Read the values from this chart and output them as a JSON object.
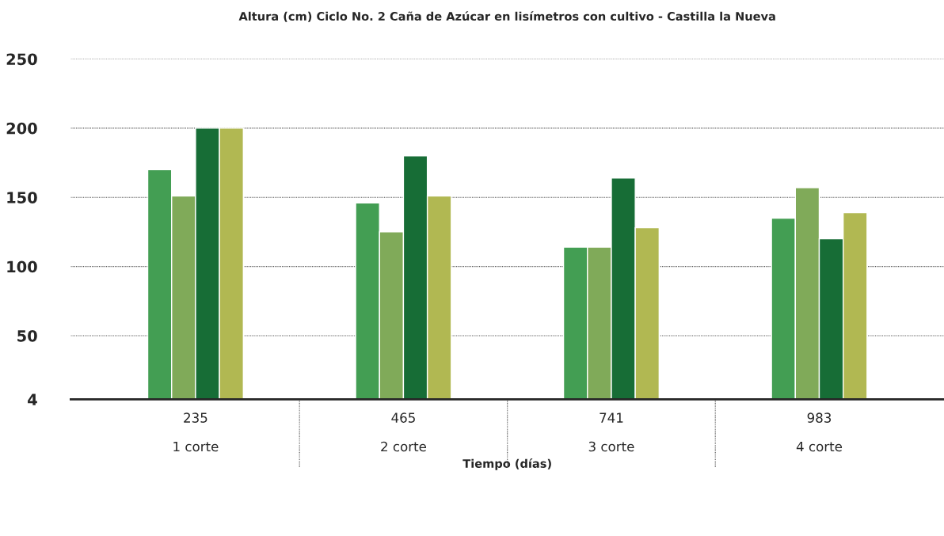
{
  "chart_data": {
    "type": "bar",
    "title": "Altura (cm) Ciclo No. 2 Caña de Azúcar en lisímetros con cultivo - Castilla la Nueva",
    "xlabel": "Tiempo (días)",
    "categories": [
      "235\n1 corte",
      "465\n2 corte",
      "741\n3 corte",
      "983\n4 corte"
    ],
    "series": [
      {
        "color": "#439e53",
        "values": [
          170,
          146,
          114,
          135
        ]
      },
      {
        "color": "#80aa59",
        "values": [
          151,
          125,
          114,
          157
        ]
      },
      {
        "color": "#176d36",
        "values": [
          200,
          180,
          164,
          120
        ]
      },
      {
        "color": "#b1b852",
        "values": [
          200,
          151,
          128,
          139
        ]
      }
    ],
    "ylim": [
      4,
      250
    ],
    "yticks": [
      4,
      50,
      100,
      150,
      200,
      250
    ],
    "grid": "y"
  }
}
